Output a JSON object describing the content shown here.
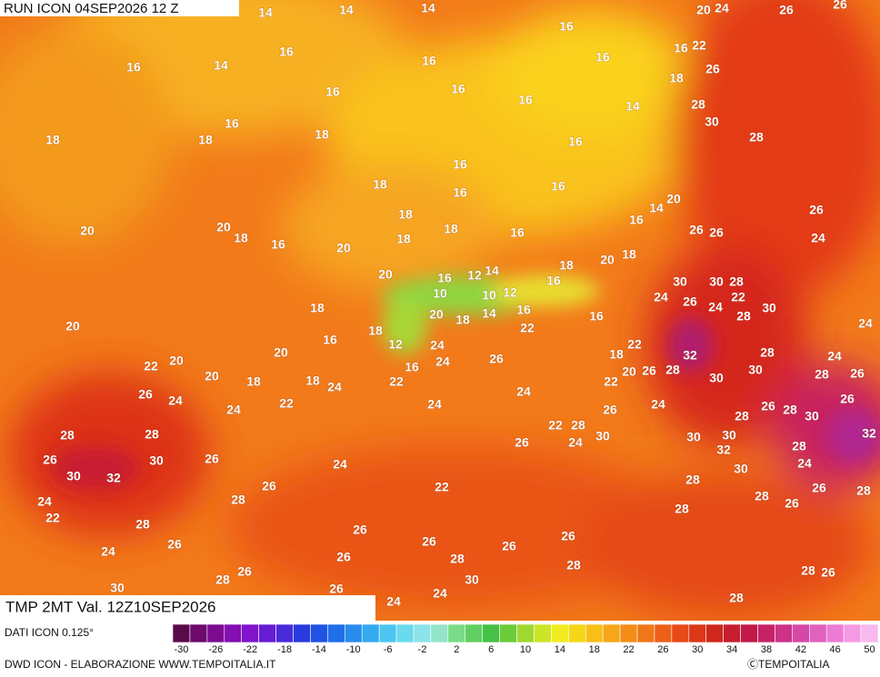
{
  "header": {
    "run": "RUN ICON 04SEP2026 12 Z",
    "variable": "TMP 2MT Val. 12Z10SEP2026"
  },
  "map": {
    "labels": [
      14,
      14,
      14,
      20,
      24,
      26,
      26,
      16,
      16,
      16,
      14,
      16,
      16,
      16,
      22,
      18,
      26,
      16,
      16,
      16,
      14,
      28,
      30,
      16,
      18,
      18,
      18,
      16,
      28,
      16,
      18,
      16,
      16,
      20,
      14,
      16,
      26,
      18,
      18,
      20,
      18,
      16,
      20,
      20,
      18,
      16,
      26,
      26,
      24,
      20,
      18,
      18,
      14,
      12,
      16,
      20,
      10,
      10,
      12,
      16,
      30,
      30,
      28,
      22,
      24,
      26,
      24,
      28,
      30,
      18,
      20,
      18,
      14,
      16,
      16,
      22,
      20,
      18,
      16,
      12,
      24,
      22,
      32,
      28,
      24,
      24,
      18,
      20,
      20,
      22,
      16,
      24,
      26,
      28,
      30,
      28,
      26,
      20,
      18,
      18,
      24,
      22,
      20,
      26,
      30,
      22,
      26,
      24,
      22,
      24,
      26,
      24,
      24,
      26,
      24,
      26,
      28,
      30,
      28,
      22,
      28,
      32,
      28,
      28,
      30,
      24,
      30,
      30,
      26,
      28,
      32,
      26,
      30,
      26,
      24,
      30,
      32,
      24,
      30,
      28,
      26,
      22,
      26,
      28,
      28,
      28,
      24,
      26,
      22,
      28,
      28,
      26,
      26,
      26,
      26,
      26,
      24,
      28,
      26,
      28,
      26,
      28,
      30,
      30,
      26,
      24,
      24,
      28,
      26,
      28
    ]
  },
  "footer": {
    "data_source": "DATI ICON 0.125°",
    "credit": "DWD ICON - ELABORAZIONE WWW.TEMPOITALIA.IT",
    "copyright": "ⒸTEMPOITALIA",
    "legend_ticks": [
      -30,
      -26,
      -22,
      -18,
      -14,
      -10,
      -6,
      -2,
      2,
      6,
      10,
      14,
      18,
      22,
      26,
      30,
      34,
      38,
      42,
      46,
      50
    ]
  }
}
